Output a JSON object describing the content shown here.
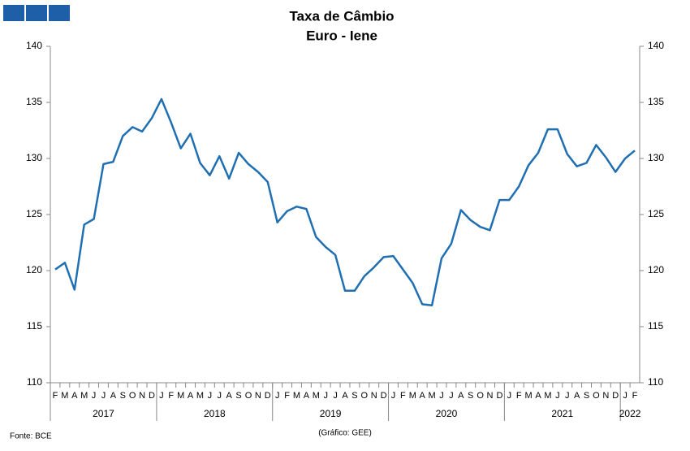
{
  "chart_data": {
    "type": "line",
    "title": "Taxa de Câmbio",
    "subtitle": "Euro - Iene",
    "categories": [
      "F",
      "M",
      "A",
      "M",
      "J",
      "J",
      "A",
      "S",
      "O",
      "N",
      "D",
      "J",
      "F",
      "M",
      "A",
      "M",
      "J",
      "J",
      "A",
      "S",
      "O",
      "N",
      "D",
      "J",
      "F",
      "M",
      "A",
      "M",
      "J",
      "J",
      "A",
      "S",
      "O",
      "N",
      "D",
      "J",
      "F",
      "M",
      "A",
      "M",
      "J",
      "J",
      "A",
      "S",
      "O",
      "N",
      "D",
      "J",
      "F",
      "M",
      "A",
      "M",
      "J",
      "J",
      "A",
      "S",
      "O",
      "N",
      "D",
      "J",
      "F"
    ],
    "years": [
      "2017",
      "2018",
      "2019",
      "2020",
      "2021",
      "2022"
    ],
    "series": [
      {
        "name": "Euro - Iene",
        "color": "#1f6fb2",
        "values": [
          120.1,
          120.7,
          118.3,
          124.1,
          124.6,
          129.5,
          129.7,
          132.0,
          132.8,
          132.4,
          133.6,
          135.3,
          133.2,
          130.9,
          132.2,
          129.6,
          128.5,
          130.2,
          128.2,
          130.5,
          129.5,
          128.8,
          127.9,
          124.3,
          125.3,
          125.7,
          125.5,
          123.0,
          122.1,
          121.4,
          118.2,
          118.2,
          119.5,
          120.3,
          121.2,
          121.3,
          120.1,
          118.9,
          117.0,
          116.9,
          121.1,
          122.4,
          125.4,
          124.5,
          123.9,
          123.6,
          126.3,
          126.3,
          127.5,
          129.4,
          130.5,
          132.6,
          132.6,
          130.4,
          129.3,
          129.6,
          131.2,
          130.1,
          128.8,
          130.0,
          130.7
        ]
      }
    ],
    "ylim": [
      110,
      140
    ],
    "yticks": [
      110,
      115,
      120,
      125,
      130,
      135,
      140
    ],
    "y2lim": [
      110,
      140
    ],
    "y2ticks": [
      110,
      115,
      120,
      125,
      130,
      135,
      140
    ],
    "source": "Fonte: BCE",
    "credit": "(Gráfico: GEE)"
  }
}
